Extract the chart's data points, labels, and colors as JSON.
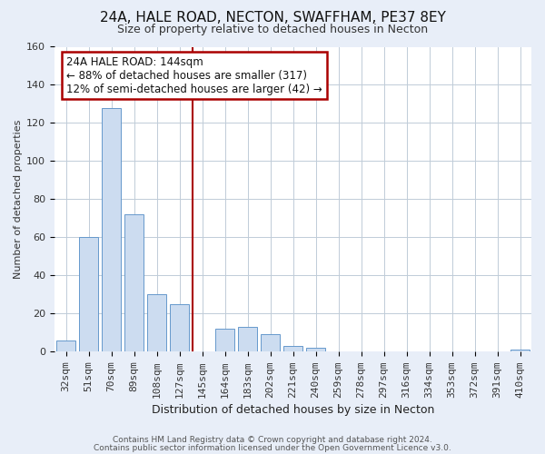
{
  "title": "24A, HALE ROAD, NECTON, SWAFFHAM, PE37 8EY",
  "subtitle": "Size of property relative to detached houses in Necton",
  "xlabel": "Distribution of detached houses by size in Necton",
  "ylabel": "Number of detached properties",
  "footer_line1": "Contains HM Land Registry data © Crown copyright and database right 2024.",
  "footer_line2": "Contains public sector information licensed under the Open Government Licence v3.0.",
  "bar_labels": [
    "32sqm",
    "51sqm",
    "70sqm",
    "89sqm",
    "108sqm",
    "127sqm",
    "145sqm",
    "164sqm",
    "183sqm",
    "202sqm",
    "221sqm",
    "240sqm",
    "259sqm",
    "278sqm",
    "297sqm",
    "316sqm",
    "334sqm",
    "353sqm",
    "372sqm",
    "391sqm",
    "410sqm"
  ],
  "bar_values": [
    6,
    60,
    128,
    72,
    30,
    25,
    0,
    12,
    13,
    9,
    3,
    2,
    0,
    0,
    0,
    0,
    0,
    0,
    0,
    0,
    1
  ],
  "bar_color_face": "#ccdcf0",
  "bar_color_edge": "#6699cc",
  "bg_color": "#e8eef8",
  "plot_bg_color": "#ffffff",
  "grid_color": "#c0ccd8",
  "vline_color": "#aa0000",
  "vline_bar_index": 6,
  "annotation_title": "24A HALE ROAD: 144sqm",
  "annotation_line1": "← 88% of detached houses are smaller (317)",
  "annotation_line2": "12% of semi-detached houses are larger (42) →",
  "annotation_box_color": "#ffffff",
  "annotation_box_edge": "#aa0000",
  "ylim": [
    0,
    160
  ],
  "yticks": [
    0,
    20,
    40,
    60,
    80,
    100,
    120,
    140,
    160
  ],
  "title_fontsize": 11,
  "subtitle_fontsize": 9,
  "xlabel_fontsize": 9,
  "ylabel_fontsize": 8,
  "tick_fontsize": 8,
  "annot_fontsize": 8.5,
  "footer_fontsize": 6.5
}
